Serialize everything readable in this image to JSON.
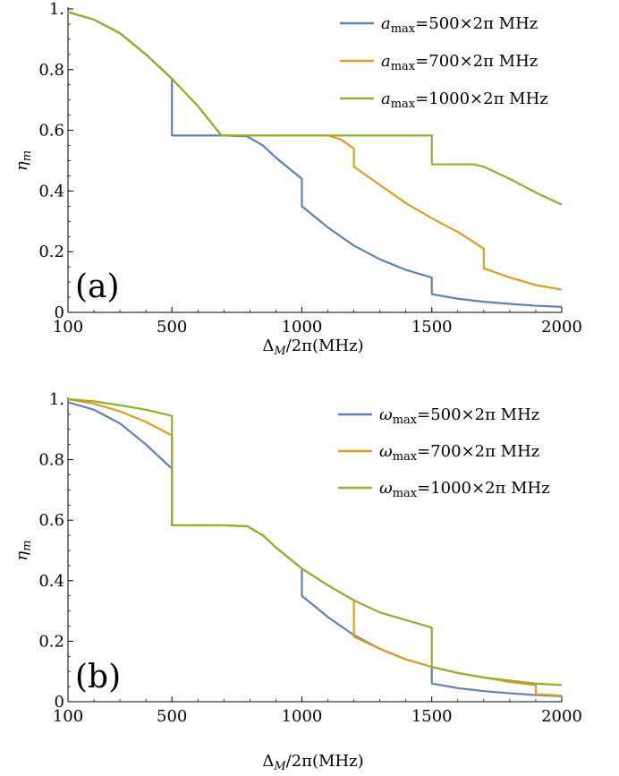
{
  "figure": {
    "background": "#ffffff"
  },
  "chart_data": [
    {
      "type": "line",
      "panel_label": "(a)",
      "xlabel": "Δ_M/2π(MHz)",
      "xlabel_parts": {
        "main": "Δ",
        "sub": "M",
        "rest": "/2π(MHz)"
      },
      "ylabel": "η_m",
      "ylabel_parts": {
        "main": "η",
        "sub": "m"
      },
      "xlim": [
        100,
        2000
      ],
      "ylim": [
        0,
        1.0
      ],
      "xticks": [
        100,
        500,
        1000,
        1500,
        2000
      ],
      "xtick_labels": [
        "100",
        "500",
        "1000",
        "1500",
        "2000"
      ],
      "yticks": [
        0,
        0.2,
        0.4,
        0.6,
        0.8,
        1.0
      ],
      "ytick_labels": [
        "0",
        "0.2",
        "0.4",
        "0.6",
        "0.8",
        "1."
      ],
      "grid": false,
      "legend_position": "top-right",
      "series": [
        {
          "name": "a_max=500×2π MHz",
          "legend_parts": {
            "sym": "a",
            "sub": "max",
            "rest": "=500×2π MHz"
          },
          "color": "#5E81B5",
          "points": [
            [
              100,
              0.99
            ],
            [
              200,
              0.965
            ],
            [
              300,
              0.92
            ],
            [
              400,
              0.85
            ],
            [
              500,
              0.77
            ],
            [
              500,
              0.583
            ],
            [
              700,
              0.583
            ],
            [
              790,
              0.58
            ],
            [
              850,
              0.55
            ],
            [
              900,
              0.51
            ],
            [
              950,
              0.475
            ],
            [
              1000,
              0.44
            ],
            [
              1000,
              0.35
            ],
            [
              1050,
              0.315
            ],
            [
              1100,
              0.28
            ],
            [
              1200,
              0.22
            ],
            [
              1300,
              0.175
            ],
            [
              1400,
              0.14
            ],
            [
              1500,
              0.115
            ],
            [
              1500,
              0.06
            ],
            [
              1600,
              0.045
            ],
            [
              1700,
              0.035
            ],
            [
              1800,
              0.028
            ],
            [
              1900,
              0.022
            ],
            [
              2000,
              0.018
            ]
          ]
        },
        {
          "name": "a_max=700×2π MHz",
          "legend_parts": {
            "sym": "a",
            "sub": "max",
            "rest": "=700×2π MHz"
          },
          "color": "#E19C24",
          "points": [
            [
              100,
              0.99
            ],
            [
              200,
              0.965
            ],
            [
              300,
              0.92
            ],
            [
              400,
              0.85
            ],
            [
              500,
              0.77
            ],
            [
              600,
              0.68
            ],
            [
              690,
              0.583
            ],
            [
              1100,
              0.583
            ],
            [
              1150,
              0.57
            ],
            [
              1200,
              0.54
            ],
            [
              1200,
              0.48
            ],
            [
              1300,
              0.42
            ],
            [
              1400,
              0.36
            ],
            [
              1500,
              0.31
            ],
            [
              1600,
              0.265
            ],
            [
              1700,
              0.21
            ],
            [
              1700,
              0.145
            ],
            [
              1800,
              0.115
            ],
            [
              1900,
              0.09
            ],
            [
              2000,
              0.075
            ]
          ]
        },
        {
          "name": "a_max=1000×2π MHz",
          "legend_parts": {
            "sym": "a",
            "sub": "max",
            "rest": "=1000×2π MHz"
          },
          "color": "#8FB032",
          "points": [
            [
              100,
              0.99
            ],
            [
              200,
              0.965
            ],
            [
              300,
              0.92
            ],
            [
              400,
              0.85
            ],
            [
              500,
              0.77
            ],
            [
              600,
              0.68
            ],
            [
              690,
              0.583
            ],
            [
              1500,
              0.583
            ],
            [
              1500,
              0.488
            ],
            [
              1660,
              0.488
            ],
            [
              1700,
              0.48
            ],
            [
              1800,
              0.44
            ],
            [
              1900,
              0.395
            ],
            [
              2000,
              0.355
            ]
          ]
        }
      ]
    },
    {
      "type": "line",
      "panel_label": "(b)",
      "xlabel": "Δ_M/2π(MHz)",
      "xlabel_parts": {
        "main": "Δ",
        "sub": "M",
        "rest": "/2π(MHz)"
      },
      "ylabel": "η_m",
      "ylabel_parts": {
        "main": "η",
        "sub": "m"
      },
      "xlim": [
        100,
        2000
      ],
      "ylim": [
        0,
        1.0
      ],
      "xticks": [
        100,
        500,
        1000,
        1500,
        2000
      ],
      "xtick_labels": [
        "100",
        "500",
        "1000",
        "1500",
        "2000"
      ],
      "yticks": [
        0,
        0.2,
        0.4,
        0.6,
        0.8,
        1.0
      ],
      "ytick_labels": [
        "0",
        "0.2",
        "0.4",
        "0.6",
        "0.8",
        "1."
      ],
      "grid": false,
      "legend_position": "top-right",
      "series": [
        {
          "name": "ω_max=500×2π MHz",
          "legend_parts": {
            "sym": "ω",
            "sub": "max",
            "rest": "=500×2π MHz"
          },
          "color": "#5E81B5",
          "points": [
            [
              100,
              0.99
            ],
            [
              200,
              0.965
            ],
            [
              300,
              0.92
            ],
            [
              400,
              0.85
            ],
            [
              500,
              0.77
            ],
            [
              500,
              0.583
            ],
            [
              700,
              0.583
            ],
            [
              790,
              0.58
            ],
            [
              850,
              0.55
            ],
            [
              900,
              0.51
            ],
            [
              950,
              0.475
            ],
            [
              1000,
              0.44
            ],
            [
              1000,
              0.35
            ],
            [
              1050,
              0.315
            ],
            [
              1100,
              0.28
            ],
            [
              1200,
              0.22
            ],
            [
              1300,
              0.175
            ],
            [
              1400,
              0.14
            ],
            [
              1500,
              0.115
            ],
            [
              1500,
              0.06
            ],
            [
              1600,
              0.045
            ],
            [
              1700,
              0.035
            ],
            [
              1800,
              0.028
            ],
            [
              1900,
              0.022
            ],
            [
              2000,
              0.018
            ]
          ]
        },
        {
          "name": "ω_max=700×2π MHz",
          "legend_parts": {
            "sym": "ω",
            "sub": "max",
            "rest": "=700×2π MHz"
          },
          "color": "#E19C24",
          "points": [
            [
              100,
              1.0
            ],
            [
              200,
              0.985
            ],
            [
              300,
              0.96
            ],
            [
              400,
              0.925
            ],
            [
              500,
              0.88
            ],
            [
              500,
              0.583
            ],
            [
              700,
              0.583
            ],
            [
              790,
              0.58
            ],
            [
              850,
              0.55
            ],
            [
              900,
              0.51
            ],
            [
              950,
              0.475
            ],
            [
              1000,
              0.44
            ],
            [
              1100,
              0.385
            ],
            [
              1200,
              0.335
            ],
            [
              1200,
              0.215
            ],
            [
              1300,
              0.175
            ],
            [
              1400,
              0.14
            ],
            [
              1500,
              0.115
            ],
            [
              1600,
              0.095
            ],
            [
              1700,
              0.08
            ],
            [
              1800,
              0.065
            ],
            [
              1900,
              0.055
            ],
            [
              1900,
              0.025
            ],
            [
              2000,
              0.02
            ]
          ]
        },
        {
          "name": "ω_max=1000×2π MHz",
          "legend_parts": {
            "sym": "ω",
            "sub": "max",
            "rest": "=1000×2π MHz"
          },
          "color": "#8FB032",
          "points": [
            [
              100,
              1.0
            ],
            [
              200,
              0.993
            ],
            [
              300,
              0.98
            ],
            [
              400,
              0.965
            ],
            [
              500,
              0.945
            ],
            [
              500,
              0.583
            ],
            [
              700,
              0.583
            ],
            [
              790,
              0.58
            ],
            [
              850,
              0.55
            ],
            [
              900,
              0.51
            ],
            [
              950,
              0.475
            ],
            [
              1000,
              0.44
            ],
            [
              1100,
              0.385
            ],
            [
              1200,
              0.335
            ],
            [
              1300,
              0.295
            ],
            [
              1400,
              0.27
            ],
            [
              1500,
              0.245
            ],
            [
              1500,
              0.115
            ],
            [
              1600,
              0.095
            ],
            [
              1700,
              0.08
            ],
            [
              1800,
              0.07
            ],
            [
              1900,
              0.06
            ],
            [
              2000,
              0.055
            ]
          ]
        }
      ]
    }
  ]
}
